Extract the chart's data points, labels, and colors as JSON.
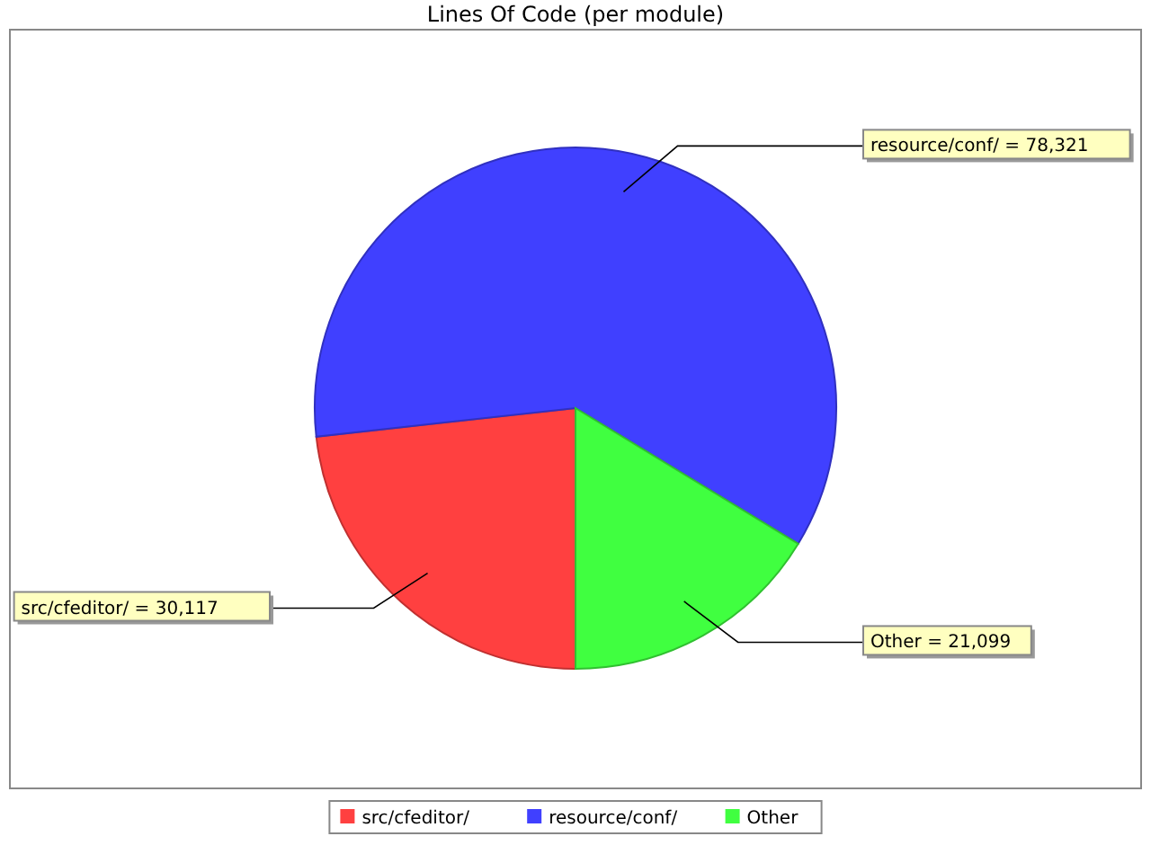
{
  "chart_data": {
    "type": "pie",
    "title": "Lines Of Code (per module)",
    "categories": [
      "src/cfeditor/",
      "resource/conf/",
      "Other"
    ],
    "values": [
      30117,
      78321,
      21099
    ],
    "colors": [
      "#ff4040",
      "#4040ff",
      "#40ff40"
    ],
    "value_labels": [
      "= 30,117",
      "= 78,321",
      "= 21,099"
    ],
    "legend": "bottom"
  }
}
